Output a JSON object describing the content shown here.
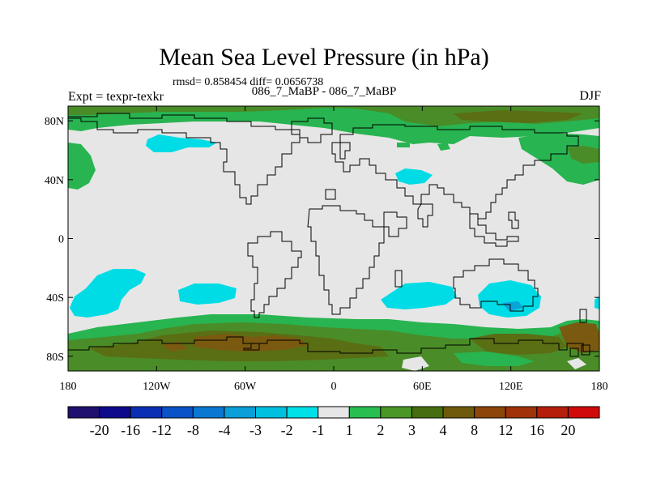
{
  "title": "Mean Sea Level Pressure (in hPa)",
  "stats": "rmsd= 0.858454 diff= 0.0656738",
  "subtitle": "086_7_MaBP - 086_7_MaBP",
  "experiment": "Expt = texpr-texkr",
  "season": "DJF",
  "map": {
    "lon_range": [
      -180,
      180
    ],
    "lat_range": [
      -90,
      90
    ],
    "x_ticks": [
      {
        "value": -180,
        "label": "180"
      },
      {
        "value": -120,
        "label": "120W"
      },
      {
        "value": -60,
        "label": "60W"
      },
      {
        "value": 0,
        "label": "0"
      },
      {
        "value": 60,
        "label": "60E"
      },
      {
        "value": 120,
        "label": "120E"
      },
      {
        "value": 180,
        "label": "180"
      }
    ],
    "y_ticks": [
      {
        "value": 80,
        "label": "80N"
      },
      {
        "value": 40,
        "label": "40N"
      },
      {
        "value": 0,
        "label": "0"
      },
      {
        "value": -40,
        "label": "40S"
      },
      {
        "value": -80,
        "label": "80S"
      }
    ]
  },
  "colorbar": {
    "colors": [
      "#1f0f6e",
      "#0d0a8c",
      "#0a2fb4",
      "#0a52c8",
      "#0a78d2",
      "#0a9fd8",
      "#00c0e0",
      "#00e0e8",
      "#e6e6e6",
      "#28be50",
      "#4a9626",
      "#466e10",
      "#6e5a0a",
      "#8c460a",
      "#a0320a",
      "#b41e0a",
      "#d00a0a"
    ],
    "labels": [
      "-20",
      "-16",
      "-12",
      "-8",
      "-4",
      "-3",
      "-2",
      "-1",
      "1",
      "2",
      "3",
      "4",
      "8",
      "12",
      "16",
      "20"
    ]
  },
  "fill_colors": {
    "background": "#e6e6e6",
    "cyan": "#00dce6",
    "cyan_core": "#0aa5d8",
    "green": "#28b450",
    "green_dark": "#4a8c28",
    "olive": "#5a6e14",
    "brown": "#7a5a10"
  }
}
